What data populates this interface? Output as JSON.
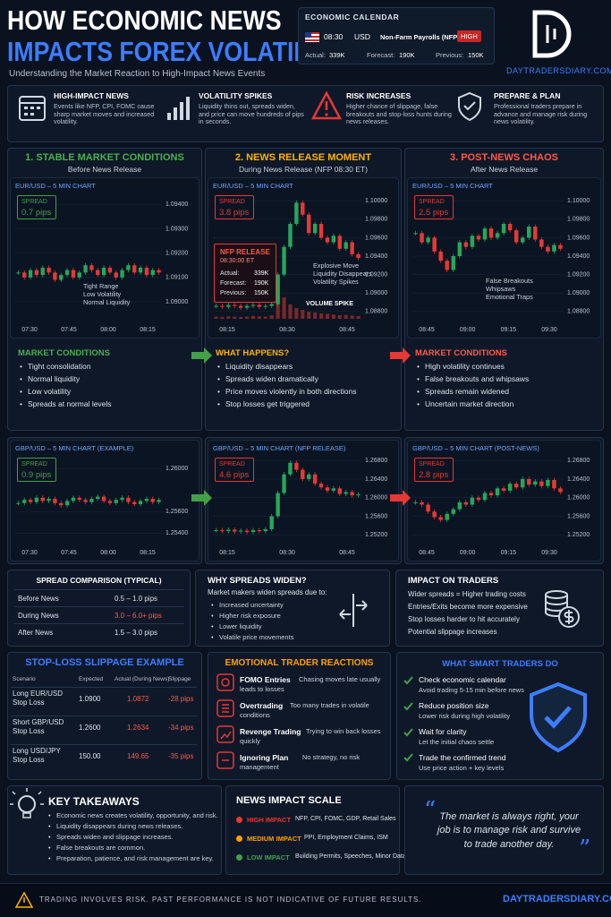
{
  "header": {
    "title_line1": "HOW ECONOMIC NEWS",
    "title_line2": "IMPACTS FOREX VOLATILITY",
    "subtitle": "Understanding the Market Reaction to High-Impact News Events"
  },
  "calendar": {
    "title": "ECONOMIC CALENDAR",
    "time": "08:30",
    "currency": "USD",
    "event": "Non-Farm Payrolls (NFP)",
    "impact": "HIGH",
    "actual_label": "Actual:",
    "actual": "339K",
    "forecast_label": "Forecast:",
    "forecast": "190K",
    "previous_label": "Previous:",
    "previous": "150K"
  },
  "brand": {
    "site": "DAYTRADERSDIARY.COM"
  },
  "features": [
    {
      "title": "HIGH-IMPACT NEWS",
      "text": "Events like NFP, CPI, FOMC cause sharp market moves and increased volatility."
    },
    {
      "title": "VOLATILITY SPIKES",
      "text": "Liquidity thins out, spreads widen, and price can move hundreds of pips in seconds."
    },
    {
      "title": "RISK INCREASES",
      "text": "Higher chance of slippage, false breakouts and stop-loss hunts during news releases."
    },
    {
      "title": "PREPARE & PLAN",
      "text": "Professional traders prepare in advance and manage risk during news volatility."
    }
  ],
  "columns": [
    {
      "title": "1. STABLE MARKET CONDITIONS",
      "subtitle": "Before News Release",
      "color": "#4caf50",
      "eur_chart": {
        "title": "EUR/USD – 5 MIN CHART",
        "spread_label": "SPREAD",
        "spread": "0.7 pips",
        "spread_color": "#43a047",
        "ylim": [
          1.0893,
          1.09445
        ],
        "yticks": [
          {
            "value": 1.094,
            "label": "1.09400"
          },
          {
            "value": 1.093,
            "label": "1.09300"
          },
          {
            "value": 1.092,
            "label": "1.09200"
          },
          {
            "value": 1.091,
            "label": "1.09100"
          },
          {
            "value": 1.09,
            "label": "1.09000"
          }
        ],
        "time_labels": [
          "07:30",
          "07:45",
          "08:00",
          "08:15"
        ],
        "closes": [
          1.0912,
          1.091,
          1.0913,
          1.0911,
          1.0914,
          1.0912,
          1.0909,
          1.0911,
          1.0913,
          1.091,
          1.0912,
          1.0915,
          1.0913,
          1.0911,
          1.0914,
          1.0912,
          1.091,
          1.0913,
          1.0915,
          1.0912,
          1.0914,
          1.0911,
          1.0913,
          1.0912
        ],
        "notes": [
          "Tight Range",
          "Low Volatility",
          "Normal Liquidity"
        ]
      },
      "list": {
        "title": "MARKET CONDITIONS",
        "items": [
          "Tight consolidation",
          "Normal liquidity",
          "Low volatility",
          "Spreads at normal levels"
        ]
      },
      "gbp_chart": {
        "title": "GBP/USD – 5 MIN CHART (EXAMPLE)",
        "spread_label": "SPREAD",
        "spread": "0.9 pips",
        "spread_color": "#43a047",
        "ylim": [
          1.2532,
          1.2612
        ],
        "yticks": [
          {
            "value": 1.26,
            "label": "1.26000"
          },
          {
            "value": 1.256,
            "label": "1.25600"
          },
          {
            "value": 1.254,
            "label": "1.25400"
          }
        ],
        "time_labels": [
          "07:30",
          "07:45",
          "08:00",
          "08:15"
        ],
        "closes": [
          1.2568,
          1.2571,
          1.2569,
          1.2573,
          1.257,
          1.2572,
          1.2568,
          1.2566,
          1.257,
          1.2573,
          1.2571,
          1.2569,
          1.2572,
          1.2574,
          1.257,
          1.2568,
          1.2571,
          1.2573,
          1.2569,
          1.2567,
          1.257,
          1.2572,
          1.2569,
          1.2571
        ]
      }
    },
    {
      "title": "2. NEWS RELEASE MOMENT",
      "subtitle": "During News Release (NFP 08:30 ET)",
      "color": "#ffb300",
      "eur_chart": {
        "title": "EUR/USD – 5 MIN CHART",
        "spread_label": "SPREAD",
        "spread": "3.8 pips",
        "spread_color": "#e53935",
        "ylim": [
          1.0872,
          1.1008
        ],
        "yticks": [
          {
            "value": 1.1,
            "label": "1.10000"
          },
          {
            "value": 1.098,
            "label": "1.09800"
          },
          {
            "value": 1.096,
            "label": "1.09600"
          },
          {
            "value": 1.094,
            "label": "1.09400"
          },
          {
            "value": 1.092,
            "label": "1.09200"
          },
          {
            "value": 1.09,
            "label": "1.09000"
          },
          {
            "value": 1.088,
            "label": "1.08800"
          }
        ],
        "time_labels": [
          "08:15",
          "08:30",
          "08:45"
        ],
        "closes": [
          1.0886,
          1.0885,
          1.0887,
          1.0886,
          1.0884,
          1.0886,
          1.0887,
          1.0885,
          1.0886,
          1.0888,
          1.092,
          1.095,
          1.0975,
          1.0998,
          1.0985,
          1.0965,
          1.0975,
          1.096,
          1.0955,
          1.0962,
          1.0948,
          1.0955,
          1.0942,
          1.0938
        ],
        "volume": [
          6,
          5,
          7,
          6,
          5,
          6,
          8,
          7,
          6,
          10,
          45,
          60,
          40,
          30,
          25,
          20,
          18,
          15,
          14,
          12,
          10,
          11,
          9,
          8
        ],
        "volume_label": "VOLUME SPIKE",
        "nfp": {
          "title": "NFP RELEASE",
          "time": "08:30:00 ET",
          "rows": [
            [
              "Actual:",
              "339K"
            ],
            [
              "Forecast:",
              "190K"
            ],
            [
              "Previous:",
              "150K"
            ]
          ]
        },
        "notes": [
          "Explosive Move",
          "Liquidity Disappears",
          "Volatility Spikes"
        ]
      },
      "list": {
        "title": "WHAT HAPPENS?",
        "items": [
          "Liquidity disappears",
          "Spreads widen dramatically",
          "Price moves violently in both directions",
          "Stop losses get triggered"
        ]
      },
      "gbp_chart": {
        "title": "GBP/USD – 5 MIN CHART (NFP RELEASE)",
        "spread_label": "SPREAD",
        "spread": "4.6 pips",
        "spread_color": "#e53935",
        "ylim": [
          1.2505,
          1.269
        ],
        "yticks": [
          {
            "value": 1.268,
            "label": "1.26800"
          },
          {
            "value": 1.264,
            "label": "1.26400"
          },
          {
            "value": 1.26,
            "label": "1.26000"
          },
          {
            "value": 1.256,
            "label": "1.25600"
          },
          {
            "value": 1.252,
            "label": "1.25200"
          }
        ],
        "time_labels": [
          "08:15",
          "08:30",
          "08:45"
        ],
        "closes": [
          1.253,
          1.2528,
          1.2531,
          1.2527,
          1.2529,
          1.2526,
          1.253,
          1.2528,
          1.2532,
          1.256,
          1.261,
          1.265,
          1.2675,
          1.266,
          1.264,
          1.265,
          1.263,
          1.2622,
          1.2615,
          1.262,
          1.2608,
          1.2612,
          1.2605,
          1.2607
        ]
      }
    },
    {
      "title": "3. POST-NEWS CHAOS",
      "subtitle": "After News Release",
      "color": "#ff5a4a",
      "eur_chart": {
        "title": "EUR/USD – 5 MIN CHART",
        "spread_label": "SPREAD",
        "spread": "2.5 pips",
        "spread_color": "#e53935",
        "ylim": [
          1.0872,
          1.1008
        ],
        "yticks": [
          {
            "value": 1.1,
            "label": "1.10000"
          },
          {
            "value": 1.098,
            "label": "1.09800"
          },
          {
            "value": 1.096,
            "label": "1.09600"
          },
          {
            "value": 1.094,
            "label": "1.09400"
          },
          {
            "value": 1.092,
            "label": "1.09200"
          },
          {
            "value": 1.09,
            "label": "1.09000"
          },
          {
            "value": 1.088,
            "label": "1.08800"
          }
        ],
        "time_labels": [
          "08:45",
          "09:00",
          "09:15",
          "09:30"
        ],
        "closes": [
          1.0965,
          1.0955,
          1.096,
          1.0945,
          1.0935,
          1.0925,
          1.094,
          1.0955,
          1.095,
          1.0962,
          1.0958,
          1.097,
          1.096,
          1.0965,
          1.0975,
          1.0968,
          1.0955,
          1.096,
          1.0972,
          1.0958,
          1.095,
          1.0945,
          1.0952,
          1.0948
        ],
        "notes": [
          "False Breakouts",
          "Whipsaws",
          "Emotional Traps"
        ]
      },
      "list": {
        "title": "MARKET CONDITIONS",
        "items": [
          "High volatility continues",
          "False breakouts and whipsaws",
          "Spreads remain widened",
          "Uncertain market direction"
        ]
      },
      "gbp_chart": {
        "title": "GBP/USD – 5 MIN CHART (POST-NEWS)",
        "spread_label": "SPREAD",
        "spread": "2.8 pips",
        "spread_color": "#e53935",
        "ylim": [
          1.2505,
          1.269
        ],
        "yticks": [
          {
            "value": 1.268,
            "label": "1.26800"
          },
          {
            "value": 1.264,
            "label": "1.26400"
          },
          {
            "value": 1.26,
            "label": "1.26000"
          },
          {
            "value": 1.256,
            "label": "1.25600"
          },
          {
            "value": 1.252,
            "label": "1.25200"
          }
        ],
        "time_labels": [
          "08:45",
          "09:00",
          "09:15",
          "09:30"
        ],
        "closes": [
          1.259,
          1.2585,
          1.257,
          1.2558,
          1.2552,
          1.2565,
          1.2575,
          1.259,
          1.2585,
          1.26,
          1.2595,
          1.261,
          1.2605,
          1.262,
          1.2615,
          1.263,
          1.2622,
          1.264,
          1.2628,
          1.2635,
          1.2625,
          1.2638,
          1.262,
          1.2612
        ]
      }
    }
  ],
  "spread_comparison": {
    "title": "SPREAD COMPARISON (TYPICAL)",
    "rows": [
      [
        "Before News",
        "0.5 – 1.0 pips"
      ],
      [
        "During News",
        "3.0 – 6.0+ pips"
      ],
      [
        "After News",
        "1.5 – 3.0 pips"
      ]
    ]
  },
  "why_spreads": {
    "title": "WHY SPREADS WIDEN?",
    "intro": "Market makers widen spreads due to:",
    "items": [
      "Increased uncertainty",
      "Higher risk exposure",
      "Lower liquidity",
      "Volatile price movements"
    ]
  },
  "impact_traders": {
    "title": "IMPACT ON TRADERS",
    "items": [
      "Wider spreads = Higher trading costs",
      "Entries/Exits become more expensive",
      "Stop losses harder to hit accurately",
      "Potential slippage increases"
    ]
  },
  "slippage": {
    "title": "STOP-LOSS SLIPPAGE EXAMPLE",
    "headers": [
      "Scenario",
      "Expected",
      "Actual (During News)",
      "Slippage"
    ],
    "rows": [
      [
        "Long EUR/USD Stop Loss",
        "1.0900",
        "1.0872",
        "-28 pips"
      ],
      [
        "Short GBP/USD Stop Loss",
        "1.2600",
        "1.2634",
        "-34 pips"
      ],
      [
        "Long USD/JPY Stop Loss",
        "150.00",
        "149.65",
        "-35 pips"
      ]
    ]
  },
  "emotional": {
    "title": "EMOTIONAL TRADER REACTIONS",
    "items": [
      {
        "label": "FOMO Entries",
        "text": "Chasing moves late usually leads to losses"
      },
      {
        "label": "Overtrading",
        "text": "Too many trades in volatile conditions"
      },
      {
        "label": "Revenge Trading",
        "text": "Trying to win back losses quickly"
      },
      {
        "label": "Ignoring Plan",
        "text": "No strategy, no risk management"
      }
    ]
  },
  "smart": {
    "title": "WHAT SMART TRADERS DO",
    "items": [
      {
        "label": "Check economic calendar",
        "text": "Avoid trading 5-15 min before news"
      },
      {
        "label": "Reduce position size",
        "text": "Lower risk during high volatility"
      },
      {
        "label": "Wait for clarity",
        "text": "Let the initial chaos settle"
      },
      {
        "label": "Trade the confirmed trend",
        "text": "Use price action + key levels"
      }
    ]
  },
  "takeaways": {
    "title": "KEY TAKEAWAYS",
    "items": [
      "Economic news creates volatility, opportunity, and risk.",
      "Liquidity disappears during news releases.",
      "Spreads widen and slippage increases.",
      "False breakouts are common.",
      "Preparation, patience, and risk management are key."
    ]
  },
  "impact_scale": {
    "title": "NEWS IMPACT SCALE",
    "levels": [
      {
        "label": "HIGH IMPACT",
        "text": "NFP, CPI, FOMC, GDP, Retail Sales",
        "color": "#e53935"
      },
      {
        "label": "MEDIUM IMPACT",
        "text": "PPI, Employment Claims, ISM",
        "color": "#ffa000"
      },
      {
        "label": "LOW IMPACT",
        "text": "Building Permits, Speeches, Minor Data",
        "color": "#43a047"
      }
    ]
  },
  "quote": {
    "open_mark": "“",
    "text": "The market is always right, your job is to manage risk and survive to trade another day.",
    "close_mark": "”"
  },
  "footer": {
    "disclaimer": "TRADING INVOLVES RISK. PAST PERFORMANCE IS NOT INDICATIVE OF FUTURE RESULTS.",
    "site": "DAYTRADERSDIARY.COM"
  }
}
